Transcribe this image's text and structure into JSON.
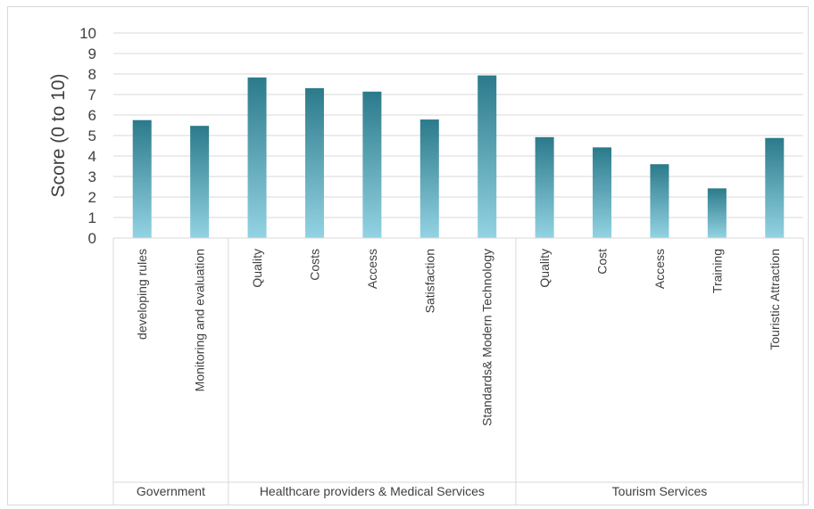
{
  "chart_data": {
    "type": "bar",
    "ylabel": "Score (0 to 10)",
    "ylim": [
      0,
      10
    ],
    "yticks": [
      "0",
      "1",
      "2",
      "3",
      "4",
      "5",
      "6",
      "7",
      "8",
      "9",
      "10"
    ],
    "grid": true,
    "legend": "none",
    "colors": {
      "bar_top": "#2b7a8b",
      "bar_bottom": "#93d3e3",
      "grid": "#d9d9d9",
      "text": "#404040"
    },
    "groups": [
      {
        "name": "Government",
        "categories": [
          "developing rules",
          "Monitoring and evaluation"
        ],
        "values": [
          5.75,
          5.47
        ]
      },
      {
        "name": "Healthcare providers & Medical Services",
        "categories": [
          "Quality",
          "Costs",
          "Access",
          "Satisfaction",
          "Standards& Modern Technology"
        ],
        "values": [
          7.83,
          7.31,
          7.14,
          5.78,
          7.93
        ]
      },
      {
        "name": "Tourism Services",
        "categories": [
          "Quality",
          "Cost",
          "Access",
          "Training",
          "Touristic Attraction"
        ],
        "values": [
          4.92,
          4.42,
          3.6,
          2.42,
          4.88
        ]
      }
    ]
  }
}
